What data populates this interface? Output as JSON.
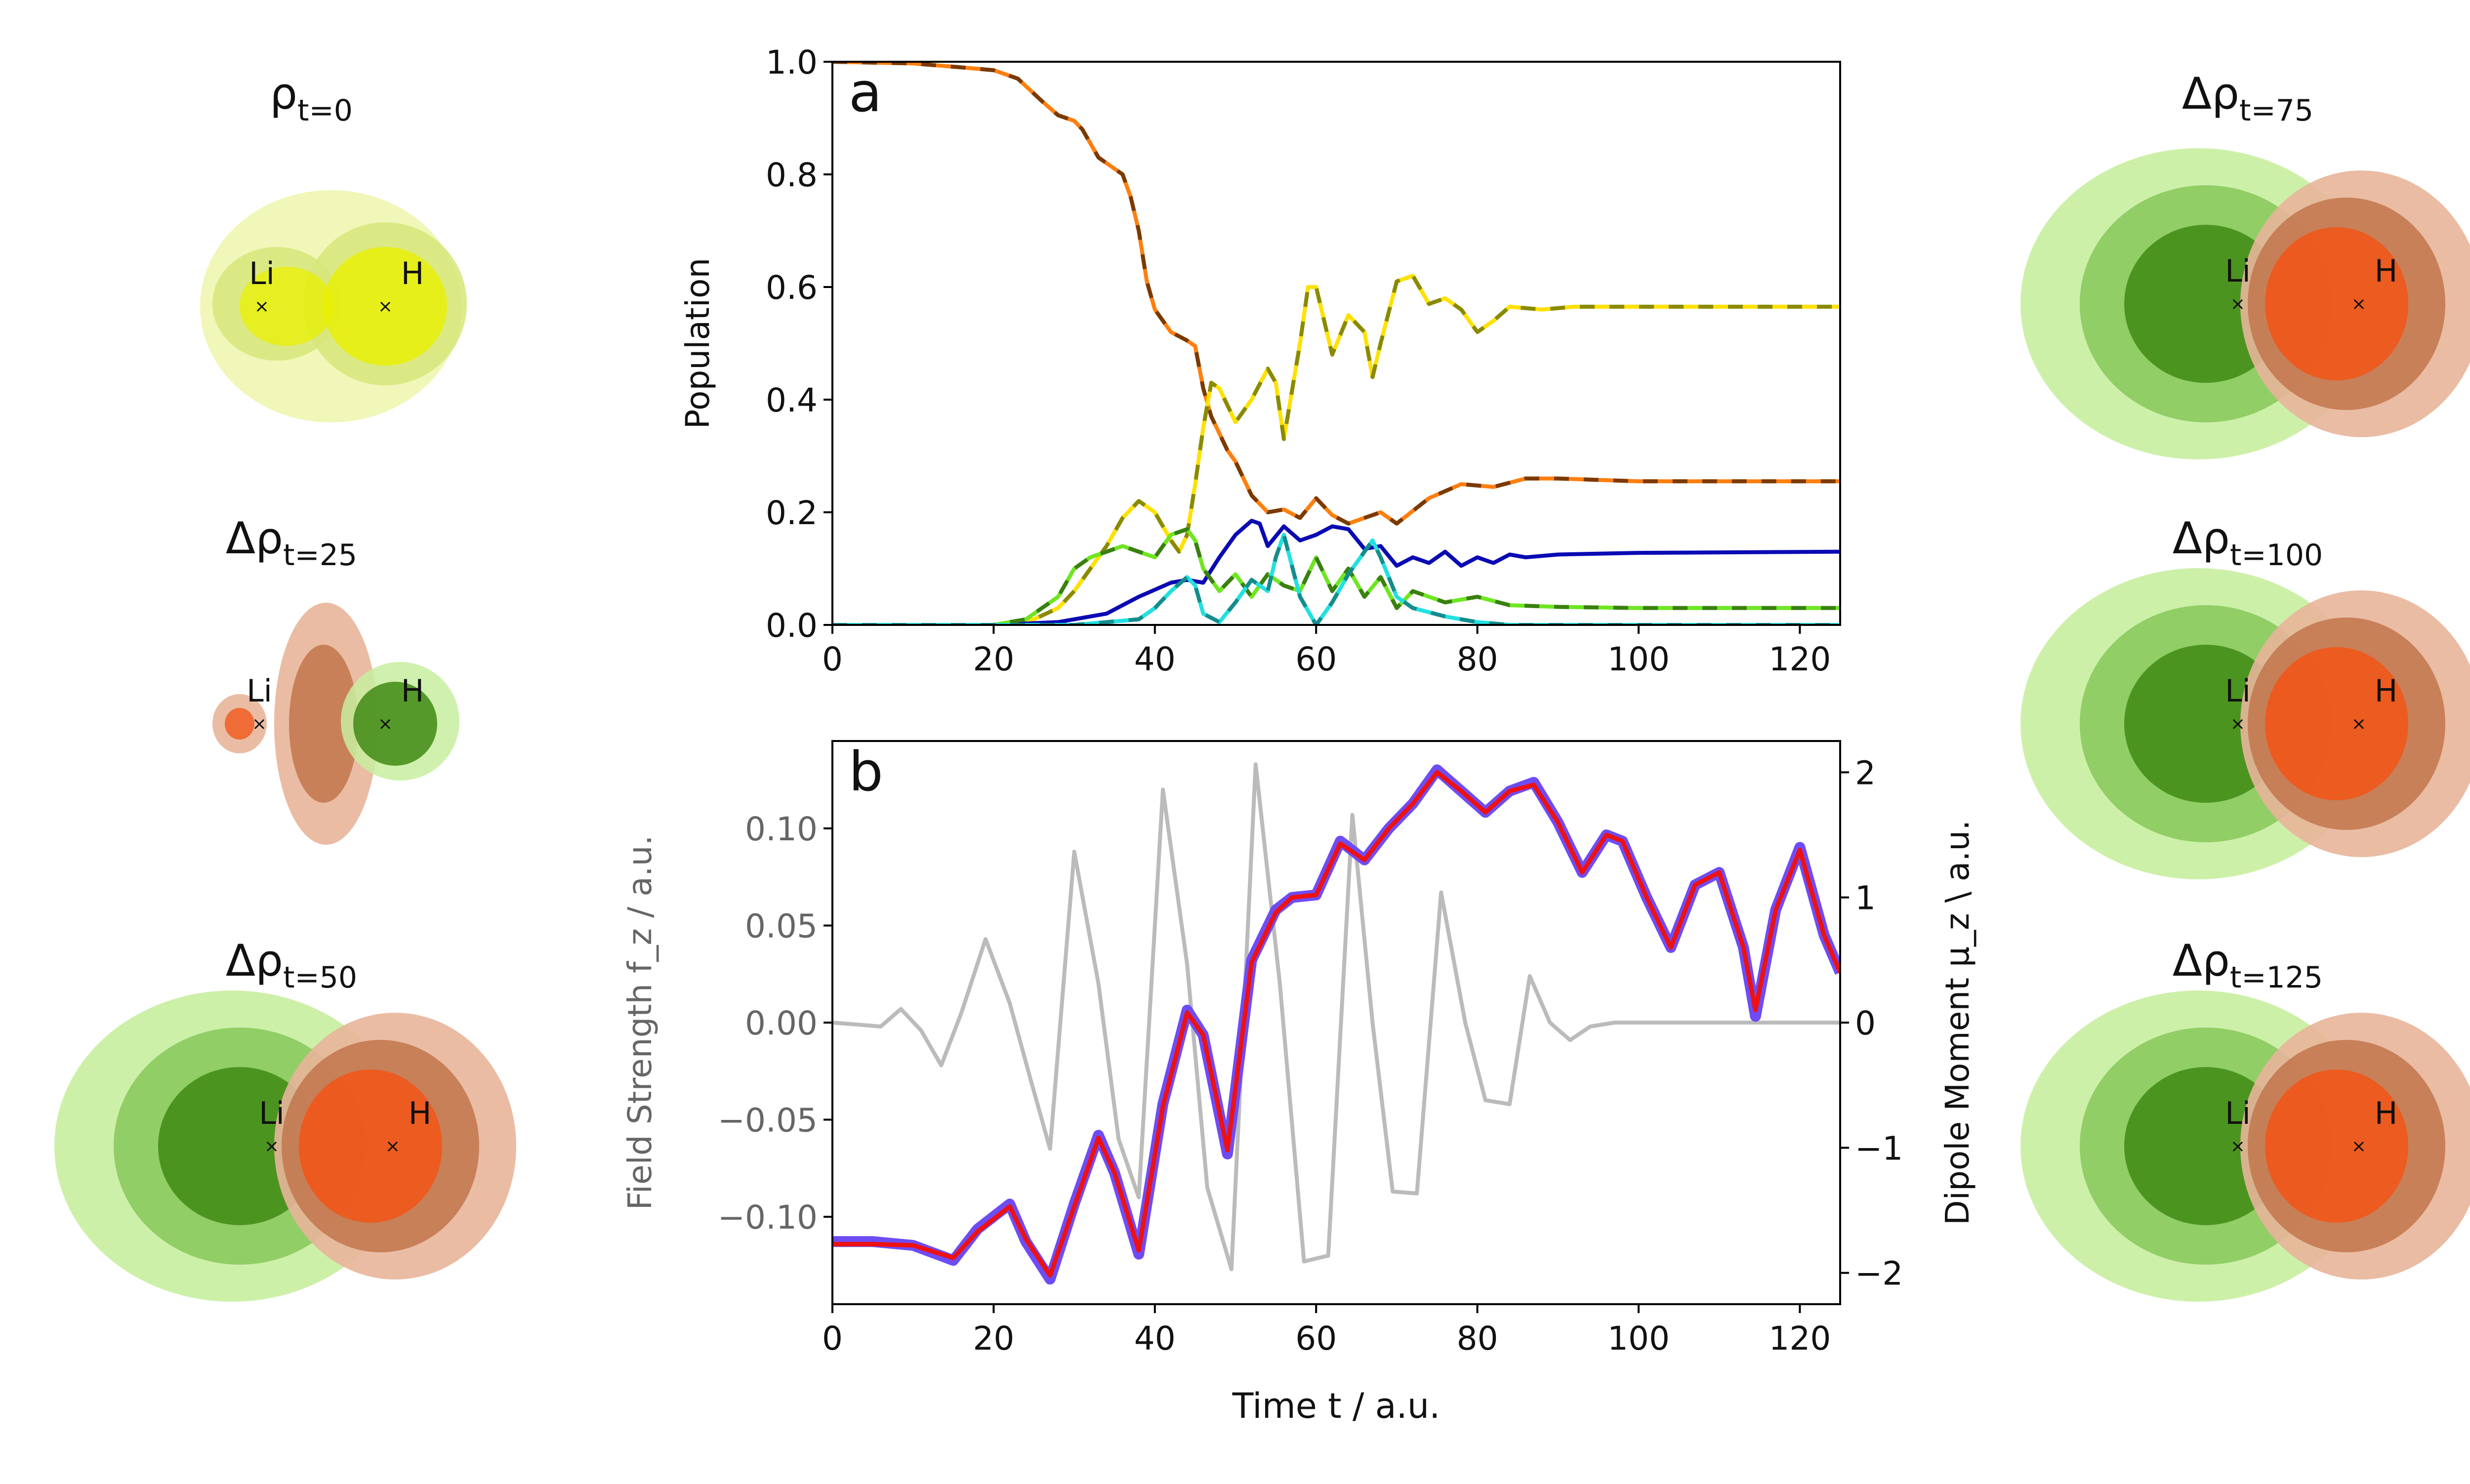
{
  "density_panels": [
    {
      "id": "rho-t0",
      "title_main": "ρ",
      "title_sub": "t=0",
      "labels": [
        "Li",
        "H"
      ],
      "style": "yellow"
    },
    {
      "id": "drho-t25",
      "title_main": "Δρ",
      "title_sub": "t=25",
      "labels": [
        "Li",
        "H"
      ],
      "style": "small"
    },
    {
      "id": "drho-t50",
      "title_main": "Δρ",
      "title_sub": "t=50",
      "labels": [
        "Li",
        "H"
      ],
      "style": "large"
    },
    {
      "id": "drho-t75",
      "title_main": "Δρ",
      "title_sub": "t=75",
      "labels": [
        "Li",
        "H"
      ],
      "style": "large"
    },
    {
      "id": "drho-t100",
      "title_main": "Δρ",
      "title_sub": "t=100",
      "labels": [
        "Li",
        "H"
      ],
      "style": "large"
    },
    {
      "id": "drho-t125",
      "title_main": "Δρ",
      "title_sub": "t=125",
      "labels": [
        "Li",
        "H"
      ],
      "style": "large"
    }
  ],
  "colors": {
    "green_light": "#c8eea0",
    "green_mid": "#86c85a",
    "green_dark": "#3f8a14",
    "orange_light": "#e8b59a",
    "orange_mid": "#c2764c",
    "orange_dark": "#f0571a",
    "yellow_light": "#eef6b0",
    "yellow_mid": "#d7e67a",
    "yellow_dark": "#e8f000"
  },
  "chart_data": [
    {
      "type": "line",
      "panel_label": "a",
      "xlabel": "",
      "ylabel": "Population",
      "xlim": [
        0,
        125
      ],
      "ylim": [
        0,
        1.0
      ],
      "xticks": [
        "0",
        "20",
        "40",
        "60",
        "80",
        "100",
        "120"
      ],
      "yticks": [
        "0.0",
        "0.2",
        "0.4",
        "0.6",
        "0.8",
        "1.0"
      ],
      "series": [
        {
          "color": "#ff7f0e",
          "dash_color": "#7a3a00",
          "x": [
            0,
            10,
            16,
            20,
            23,
            26,
            28,
            30,
            31,
            33,
            35,
            36,
            37,
            38,
            39,
            40,
            42,
            44,
            45,
            46,
            47,
            48,
            49,
            50,
            52,
            54,
            56,
            58,
            60,
            62,
            64,
            66,
            68,
            70,
            74,
            78,
            82,
            86,
            90,
            100,
            125
          ],
          "values": [
            1.0,
            0.997,
            0.99,
            0.985,
            0.97,
            0.93,
            0.905,
            0.895,
            0.88,
            0.83,
            0.81,
            0.8,
            0.76,
            0.7,
            0.61,
            0.56,
            0.52,
            0.505,
            0.495,
            0.42,
            0.37,
            0.34,
            0.31,
            0.29,
            0.23,
            0.2,
            0.205,
            0.19,
            0.225,
            0.195,
            0.18,
            0.19,
            0.2,
            0.18,
            0.225,
            0.25,
            0.245,
            0.26,
            0.26,
            0.255,
            0.255
          ]
        },
        {
          "color": "#ffe100",
          "dash_color": "#8a8a00",
          "x": [
            0,
            20,
            25,
            28,
            30,
            32,
            34,
            36,
            38,
            40,
            42,
            43,
            44,
            45,
            46,
            47,
            48,
            50,
            52,
            54,
            55,
            56,
            58,
            59,
            60,
            62,
            64,
            66,
            67,
            68,
            70,
            72,
            74,
            76,
            78,
            80,
            82,
            84,
            88,
            92,
            100,
            125
          ],
          "values": [
            0.0,
            0.0,
            0.01,
            0.03,
            0.06,
            0.1,
            0.14,
            0.19,
            0.22,
            0.2,
            0.15,
            0.13,
            0.16,
            0.25,
            0.35,
            0.43,
            0.42,
            0.36,
            0.4,
            0.455,
            0.43,
            0.33,
            0.5,
            0.6,
            0.6,
            0.48,
            0.55,
            0.52,
            0.44,
            0.5,
            0.61,
            0.62,
            0.57,
            0.58,
            0.56,
            0.52,
            0.54,
            0.565,
            0.56,
            0.565,
            0.565,
            0.565
          ]
        },
        {
          "color": "#0a0ab4",
          "dash_color": null,
          "x": [
            0,
            20,
            28,
            34,
            38,
            42,
            44,
            46,
            48,
            50,
            52,
            53,
            54,
            56,
            58,
            60,
            62,
            64,
            66,
            68,
            70,
            72,
            74,
            76,
            78,
            80,
            82,
            84,
            86,
            90,
            100,
            125
          ],
          "values": [
            0.0,
            0.0,
            0.005,
            0.02,
            0.05,
            0.075,
            0.08,
            0.075,
            0.12,
            0.16,
            0.185,
            0.18,
            0.14,
            0.175,
            0.15,
            0.16,
            0.175,
            0.17,
            0.135,
            0.14,
            0.105,
            0.12,
            0.11,
            0.13,
            0.105,
            0.12,
            0.11,
            0.125,
            0.12,
            0.125,
            0.128,
            0.13
          ]
        },
        {
          "color": "#6ee620",
          "dash_color": "#3a8010",
          "x": [
            0,
            20,
            24,
            28,
            30,
            32,
            34,
            36,
            38,
            40,
            42,
            44,
            45,
            46,
            48,
            50,
            52,
            54,
            56,
            58,
            60,
            62,
            64,
            66,
            68,
            70,
            72,
            76,
            80,
            84,
            90,
            100,
            125
          ],
          "values": [
            0.0,
            0.0,
            0.01,
            0.05,
            0.1,
            0.12,
            0.13,
            0.14,
            0.13,
            0.12,
            0.16,
            0.17,
            0.15,
            0.1,
            0.06,
            0.09,
            0.05,
            0.09,
            0.07,
            0.06,
            0.12,
            0.06,
            0.1,
            0.05,
            0.085,
            0.03,
            0.06,
            0.04,
            0.05,
            0.035,
            0.032,
            0.03,
            0.03
          ]
        },
        {
          "color": "#22e0e0",
          "dash_color": "#148c8c",
          "x": [
            0,
            30,
            34,
            38,
            40,
            42,
            44,
            45,
            46,
            48,
            50,
            52,
            54,
            55,
            56,
            58,
            60,
            62,
            64,
            66,
            67,
            68,
            70,
            72,
            76,
            80,
            84,
            90,
            125
          ],
          "values": [
            0.0,
            0.0,
            0.005,
            0.01,
            0.03,
            0.06,
            0.085,
            0.07,
            0.02,
            0.005,
            0.04,
            0.08,
            0.06,
            0.12,
            0.16,
            0.05,
            0.0,
            0.04,
            0.09,
            0.13,
            0.15,
            0.12,
            0.05,
            0.03,
            0.015,
            0.005,
            0.0,
            0.0,
            0.0
          ]
        }
      ]
    },
    {
      "type": "line",
      "panel_label": "b",
      "xlabel": "Time t / a.u.",
      "ylabel": "Field Strength f_z / a.u.",
      "ylabel2": "Dipole Moment μ_z \\ a.u.",
      "xlim": [
        0,
        125
      ],
      "ylim": [
        -0.145,
        0.145
      ],
      "ylim2": [
        -2.25,
        2.25
      ],
      "xticks": [
        "0",
        "20",
        "40",
        "60",
        "80",
        "100",
        "120"
      ],
      "yticks": [
        "−0.10",
        "−0.05",
        "0.00",
        "0.05",
        "0.10"
      ],
      "yticks2": [
        "−2",
        "−1",
        "0",
        "1",
        "2"
      ],
      "field_series": {
        "color": "#bbbbbb",
        "x": [
          0,
          3,
          6,
          8.5,
          11,
          13.5,
          16,
          19,
          22,
          24.5,
          27,
          30,
          33,
          35.5,
          38,
          41,
          44,
          46.5,
          49.5,
          52.5,
          55.5,
          58.5,
          61.5,
          64.5,
          67,
          69.5,
          72.5,
          75.5,
          78.5,
          81,
          84,
          86.5,
          89,
          91.5,
          94,
          97,
          100,
          125
        ],
        "values": [
          0.0,
          -0.001,
          -0.002,
          0.007,
          -0.004,
          -0.022,
          0.005,
          0.043,
          0.01,
          -0.028,
          -0.065,
          0.088,
          0.02,
          -0.06,
          -0.09,
          0.12,
          0.03,
          -0.085,
          -0.127,
          0.133,
          0.02,
          -0.123,
          -0.12,
          0.107,
          0.0,
          -0.087,
          -0.088,
          0.067,
          0.0,
          -0.04,
          -0.042,
          0.024,
          0.0,
          -0.009,
          -0.002,
          0.0,
          0.0,
          0.0
        ]
      },
      "dipole_raw": {
        "color": "#6e4cf5",
        "x": [
          0,
          5,
          10,
          15,
          18,
          22,
          24,
          27,
          30,
          33,
          35,
          38,
          41,
          44,
          46,
          49,
          52,
          55,
          57,
          60,
          63,
          66,
          69,
          72,
          75,
          78,
          81,
          84,
          87,
          90,
          93,
          96,
          98,
          101,
          104,
          107,
          110,
          113,
          114.5,
          117,
          120,
          123,
          125
        ],
        "values": [
          -1.75,
          -1.75,
          -1.78,
          -1.9,
          -1.65,
          -1.45,
          -1.75,
          -2.05,
          -1.45,
          -0.9,
          -1.2,
          -1.85,
          -0.65,
          0.1,
          -0.1,
          -1.05,
          0.5,
          0.9,
          1.0,
          1.02,
          1.45,
          1.3,
          1.55,
          1.75,
          2.02,
          1.85,
          1.68,
          1.85,
          1.92,
          1.6,
          1.2,
          1.5,
          1.45,
          1.0,
          0.6,
          1.1,
          1.2,
          0.6,
          0.05,
          0.9,
          1.4,
          0.7,
          0.4
        ]
      },
      "dipole_smooth": {
        "color": "#ee1111",
        "x": [
          0,
          5,
          10,
          15,
          18,
          22,
          24,
          27,
          30,
          33,
          35,
          38,
          41,
          44,
          46,
          49,
          52,
          55,
          57,
          60,
          63,
          66,
          69,
          72,
          75,
          78,
          81,
          84,
          87,
          90,
          93,
          96,
          98,
          101,
          104,
          107,
          110,
          113,
          114.5,
          117,
          120,
          123,
          125
        ],
        "values": [
          -1.77,
          -1.77,
          -1.78,
          -1.88,
          -1.67,
          -1.47,
          -1.73,
          -2.02,
          -1.47,
          -0.92,
          -1.2,
          -1.82,
          -0.67,
          0.08,
          -0.1,
          -1.02,
          0.48,
          0.88,
          1.0,
          1.02,
          1.43,
          1.3,
          1.55,
          1.75,
          2.0,
          1.85,
          1.68,
          1.85,
          1.9,
          1.6,
          1.2,
          1.5,
          1.45,
          1.0,
          0.6,
          1.1,
          1.2,
          0.6,
          0.1,
          0.9,
          1.38,
          0.7,
          0.4
        ]
      }
    }
  ]
}
